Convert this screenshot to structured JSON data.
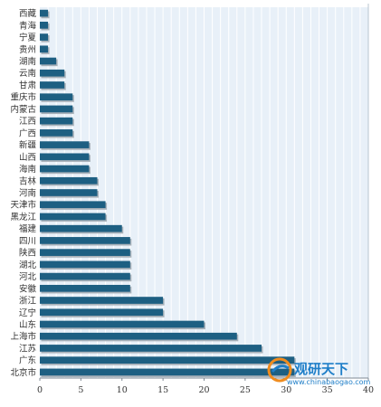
{
  "chart_data": {
    "type": "bar",
    "orientation": "horizontal",
    "categories": [
      "西藏",
      "青海",
      "宁夏",
      "贵州",
      "湖南",
      "云南",
      "甘肃",
      "重庆市",
      "内蒙古",
      "江西",
      "广西",
      "新疆",
      "山西",
      "海南",
      "吉林",
      "河南",
      "天津市",
      "黑龙江",
      "福建",
      "四川",
      "陕西",
      "湖北",
      "河北",
      "安徽",
      "浙江",
      "辽宁",
      "山东",
      "上海市",
      "江苏",
      "广东",
      "北京市"
    ],
    "values": [
      1,
      1,
      1,
      1,
      2,
      3,
      3,
      4,
      4,
      4,
      4,
      6,
      6,
      6,
      7,
      7,
      8,
      8,
      10,
      11,
      11,
      11,
      11,
      11,
      15,
      15,
      20,
      24,
      27,
      31,
      31
    ],
    "xlim": [
      0,
      40
    ],
    "xticks": [
      "0",
      "5",
      "10",
      "15",
      "20",
      "25",
      "30",
      "35",
      "40"
    ],
    "bar_color": "#1d5f82",
    "plot_background": "#e8f0f8",
    "grid": true
  },
  "watermark": {
    "brand": "观研天下",
    "url": "www.chinabaogao.com",
    "colors": {
      "orange": "#f08c1e",
      "blue": "#1e7ec8"
    }
  }
}
